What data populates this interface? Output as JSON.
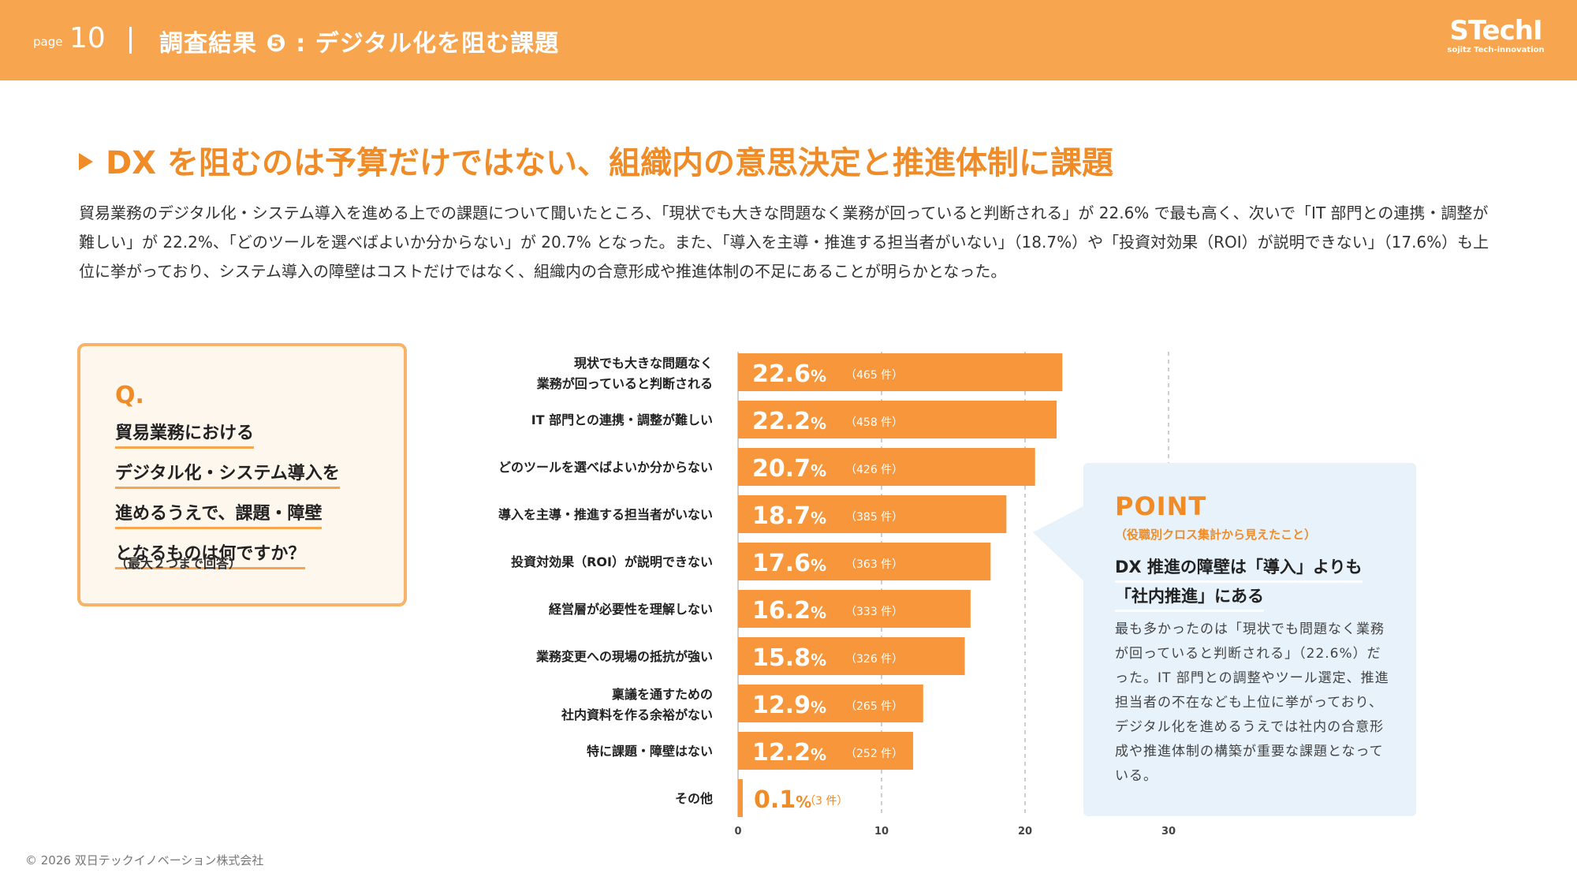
{
  "header": {
    "page_label": "page",
    "page_number": "10",
    "title": "調査結果 ❺ : デジタル化を阻む課題",
    "logo_main": "STechI",
    "logo_sub": "sojitz Tech-innovation"
  },
  "headline": "DX を阻むのは予算だけではない、組織内の意思決定と推進体制に課題",
  "description": "貿易業務のデジタル化・システム導入を進める上での課題について聞いたところ、「現状でも大きな問題なく業務が回っていると判断される」が 22.6% で最も高く、次いで「IT 部門との連携・調整が難しい」が 22.2%、「どのツールを選べばよいか分からない」が 20.7% となった。また、「導入を主導・推進する担当者がいない」（18.7%）や「投資対効果（ROI）が説明できない」（17.6%）も上位に挙がっており、システム導入の障壁はコストだけではなく、組織内の合意形成や推進体制の不足にあることが明らかとなった。",
  "question": {
    "letter": "Q.",
    "lines": [
      "貿易業務における",
      "デジタル化・システム導入を",
      "進めるうえで、課題・障壁",
      "となるものは何ですか？"
    ],
    "note": "（最大２つまで回答）"
  },
  "chart_data": {
    "type": "bar",
    "orientation": "horizontal",
    "categories": [
      [
        "現状でも大きな問題なく",
        "業務が回っていると判断される"
      ],
      [
        "IT 部門との連携・調整が難しい"
      ],
      [
        "どのツールを選べばよいか分からない"
      ],
      [
        "導入を主導・推進する担当者がいない"
      ],
      [
        "投資対効果（ROI）が説明できない"
      ],
      [
        "経営層が必要性を理解しない"
      ],
      [
        "業務変更への現場の抵抗が強い"
      ],
      [
        "稟議を通すための",
        "社内資料を作る余裕がない"
      ],
      [
        "特に課題・障壁はない"
      ],
      [
        "その他"
      ]
    ],
    "values": [
      22.6,
      22.2,
      20.7,
      18.7,
      17.6,
      16.2,
      15.8,
      12.9,
      12.2,
      0.1
    ],
    "value_labels": [
      "22.6",
      "22.2",
      "20.7",
      "18.7",
      "17.6",
      "16.2",
      "15.8",
      "12.9",
      "12.2",
      "0.1"
    ],
    "percent_sign": "%",
    "counts": [
      "（465 件）",
      "（458 件）",
      "（426 件）",
      "（385 件）",
      "（363 件）",
      "（333 件）",
      "（326 件）",
      "（265 件）",
      "（252 件）",
      "（3 件）"
    ],
    "xticks": [
      0,
      10,
      20,
      30
    ],
    "xlim": [
      0,
      30
    ],
    "grid": "dashed vertical",
    "bar_color": "#f7963a"
  },
  "point": {
    "title": "POINT",
    "subtitle": "（役職別クロス集計から見えたこと）",
    "head_lines": [
      "DX 推進の障壁は「導入」よりも",
      "「社内推進」にある"
    ],
    "body": "最も多かったのは「現状でも問題なく業務が回っていると判断される」（22.6%）だった。IT 部門との調整やツール選定、推進担当者の不在なども上位に挙がっており、デジタル化を進めるうえでは社内の合意形成や推進体制の構築が重要な課題となっている。"
  },
  "copyright": "© 2026 双日テックイノベーション株式会社"
}
